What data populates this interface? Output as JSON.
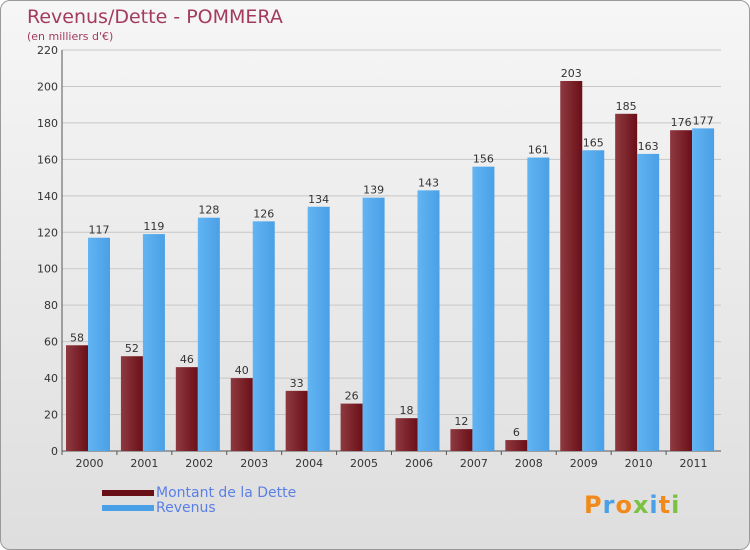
{
  "header": {
    "title": "Revenus/Dette - POMMERA",
    "subtitle": "(en milliers d'€)"
  },
  "logo": {
    "text": "Proxiti"
  },
  "colors": {
    "dette": "#6b0f17",
    "revenus": "#4aa0e6",
    "grid": "#c7c7c7",
    "axis_text": "#333333"
  },
  "chart_data": {
    "type": "bar",
    "title": "Revenus/Dette - POMMERA",
    "ylabel": "(en milliers d'€)",
    "xlabel": "",
    "categories": [
      "2000",
      "2001",
      "2002",
      "2003",
      "2004",
      "2005",
      "2006",
      "2007",
      "2008",
      "2009",
      "2010",
      "2011"
    ],
    "series": [
      {
        "name": "Montant de la Dette",
        "values": [
          58,
          52,
          46,
          40,
          33,
          26,
          18,
          12,
          6,
          203,
          185,
          176
        ]
      },
      {
        "name": "Revenus",
        "values": [
          117,
          119,
          128,
          126,
          134,
          139,
          143,
          156,
          161,
          165,
          163,
          177
        ]
      }
    ],
    "ylim": [
      0,
      220
    ],
    "yticks": [
      0,
      20,
      40,
      60,
      80,
      100,
      120,
      140,
      160,
      180,
      200,
      220
    ],
    "grid": true,
    "legend_position": "bottom-left"
  }
}
